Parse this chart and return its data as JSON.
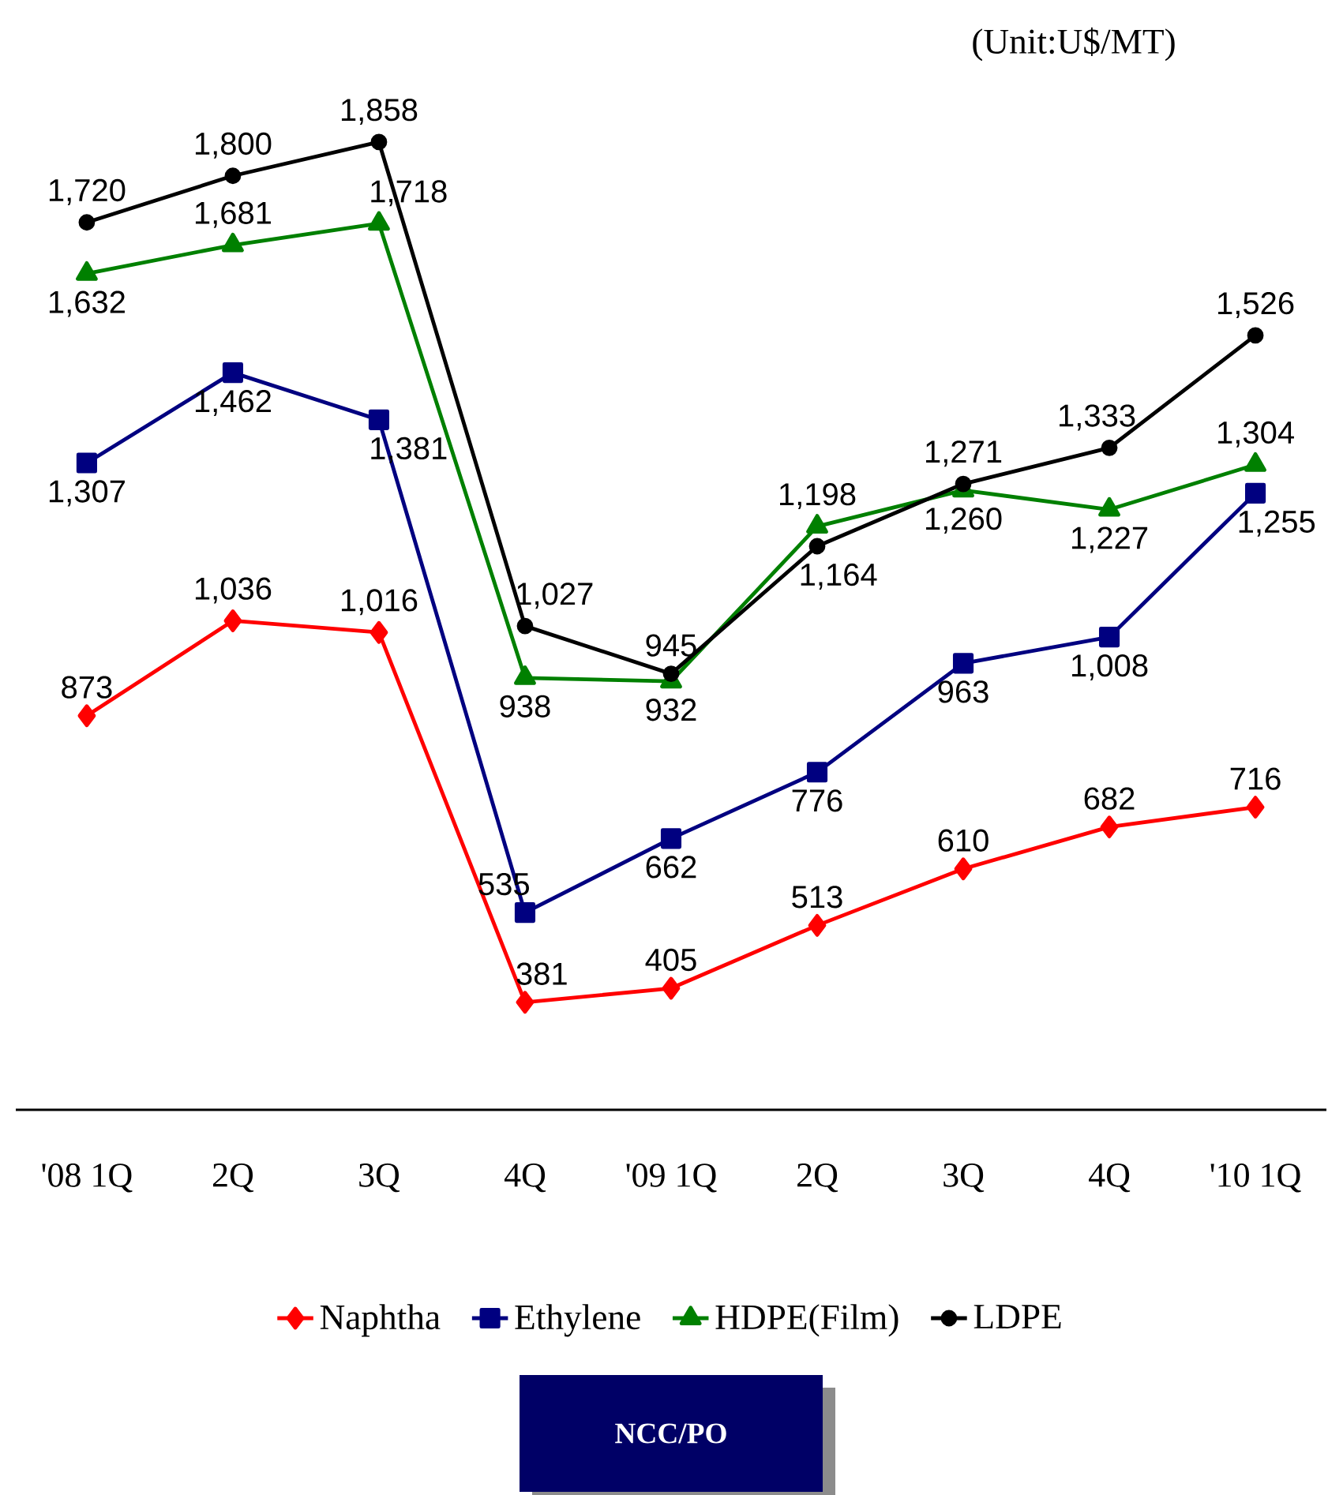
{
  "chart_data": {
    "type": "line",
    "categories": [
      "'08 1Q",
      "2Q",
      "3Q",
      "4Q",
      "'09 1Q",
      "2Q",
      "3Q",
      "4Q",
      "'10 1Q"
    ],
    "series": [
      {
        "name": "Naphtha",
        "color": "#ff0000",
        "marker": "diamond",
        "values": [
          873,
          1036,
          1016,
          381,
          405,
          513,
          610,
          682,
          716
        ],
        "value_labels": [
          "873",
          "1,036",
          "1,016",
          "381",
          "405",
          "513",
          "610",
          "682",
          "716"
        ]
      },
      {
        "name": "Ethylene",
        "color": "#000080",
        "marker": "square",
        "values": [
          1307,
          1462,
          1381,
          535,
          662,
          776,
          963,
          1008,
          1255
        ],
        "value_labels": [
          "1,307",
          "1,462",
          "1,381",
          "535",
          "662",
          "776",
          "963",
          "1,008",
          "1,255"
        ]
      },
      {
        "name": "HDPE(Film)",
        "color": "#008000",
        "marker": "triangle",
        "values": [
          1632,
          1681,
          1718,
          938,
          932,
          1198,
          1260,
          1227,
          1304
        ],
        "value_labels": [
          "1,632",
          "1,681",
          "1,718",
          "938",
          "932",
          "1,198",
          "1,260",
          "1,227",
          "1,304"
        ]
      },
      {
        "name": "LDPE",
        "color": "#000000",
        "marker": "circle",
        "values": [
          1720,
          1800,
          1858,
          1027,
          945,
          1164,
          1271,
          1333,
          1526
        ],
        "value_labels": [
          "1,720",
          "1,800",
          "1,858",
          "1,027",
          "945",
          "1,164",
          "1,271",
          "1,333",
          "1,526"
        ]
      }
    ],
    "tick_labels": "x",
    "legend": "bottom",
    "grid": false,
    "annotations": [
      "(Unit:U$/MT)",
      "NCC/PO"
    ]
  }
}
